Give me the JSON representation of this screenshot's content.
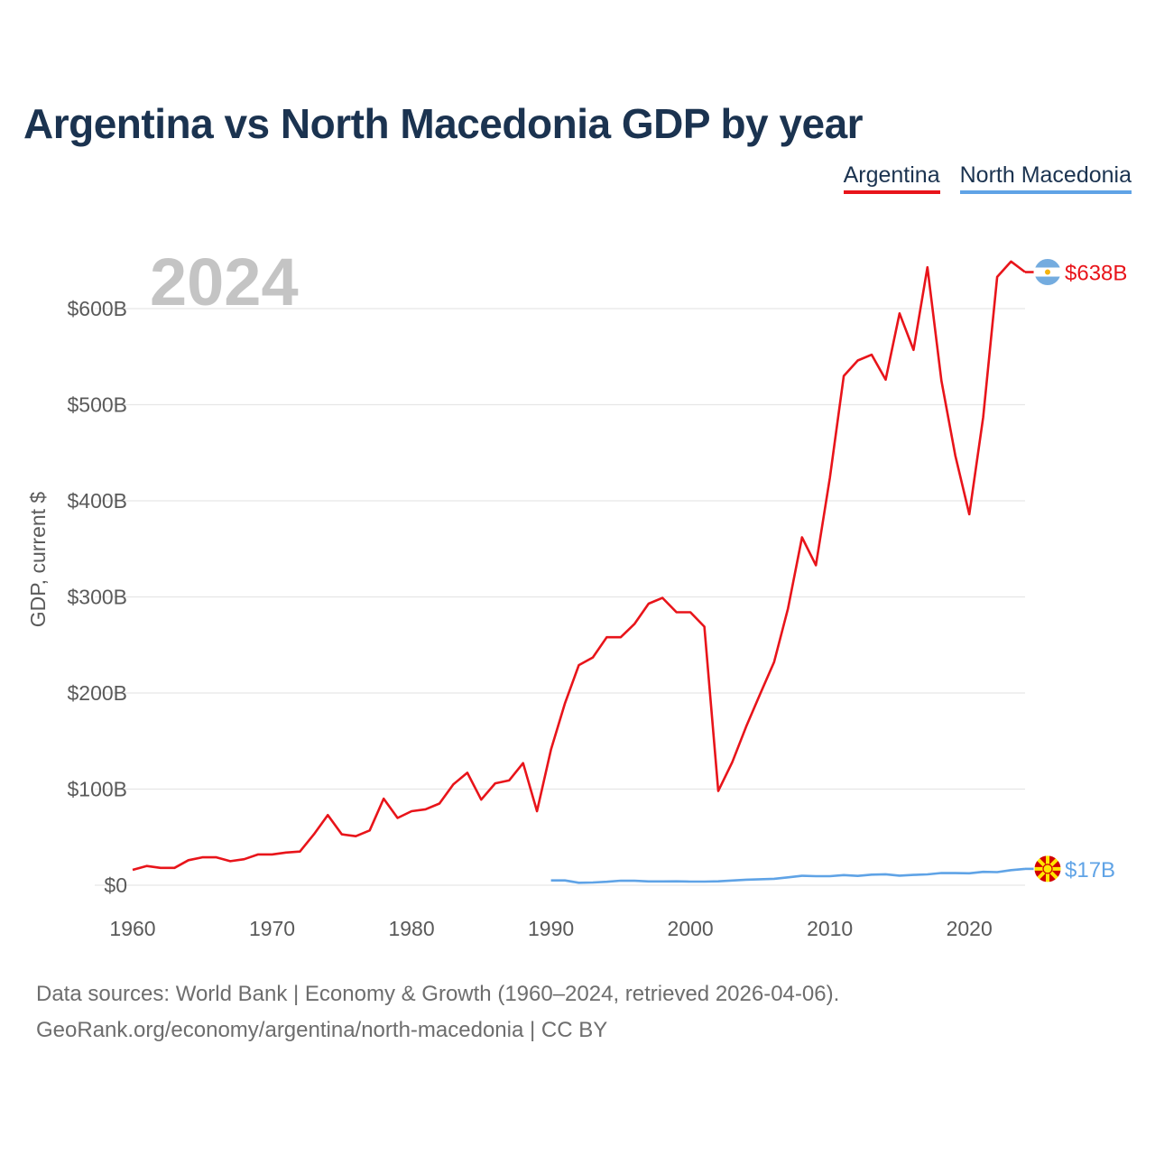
{
  "chart_data": {
    "type": "line",
    "title": "Argentina vs North Macedonia GDP by year",
    "year_label": "2024",
    "ylabel": "GDP, current $",
    "xlabel": "",
    "xlim": [
      1960,
      2024
    ],
    "ylim": [
      0,
      600
    ],
    "y_unit": "billions USD",
    "x_ticks": [
      1960,
      1970,
      1980,
      1990,
      2000,
      2010,
      2020
    ],
    "x_tick_labels": [
      "1960",
      "1970",
      "1980",
      "1990",
      "2000",
      "2010",
      "2020"
    ],
    "y_ticks": [
      0,
      100,
      200,
      300,
      400,
      500,
      600
    ],
    "y_tick_labels": [
      "$0",
      "$100B",
      "$200B",
      "$300B",
      "$400B",
      "$500B",
      "$600B"
    ],
    "grid": true,
    "legend_position": "top-right",
    "series": [
      {
        "name": "Argentina",
        "color": "#e8141a",
        "end_label": "$638B",
        "flag_icon": "argentina-flag-icon",
        "x": [
          1960,
          1961,
          1962,
          1963,
          1964,
          1965,
          1966,
          1967,
          1968,
          1969,
          1970,
          1971,
          1972,
          1973,
          1974,
          1975,
          1976,
          1977,
          1978,
          1979,
          1980,
          1981,
          1982,
          1983,
          1984,
          1985,
          1986,
          1987,
          1988,
          1989,
          1990,
          1991,
          1992,
          1993,
          1994,
          1995,
          1996,
          1997,
          1998,
          1999,
          2000,
          2001,
          2002,
          2003,
          2004,
          2005,
          2006,
          2007,
          2008,
          2009,
          2010,
          2011,
          2012,
          2013,
          2014,
          2015,
          2016,
          2017,
          2018,
          2019,
          2020,
          2021,
          2022,
          2023,
          2024
        ],
        "values": [
          16,
          20,
          18,
          18,
          26,
          29,
          29,
          25,
          27,
          32,
          32,
          34,
          35,
          53,
          73,
          53,
          51,
          57,
          90,
          70,
          77,
          79,
          85,
          105,
          117,
          89,
          106,
          109,
          127,
          77,
          141,
          189,
          229,
          237,
          258,
          258,
          272,
          293,
          299,
          284,
          284,
          269,
          98,
          128,
          165,
          199,
          232,
          288,
          362,
          333,
          424,
          530,
          546,
          552,
          526,
          595,
          557,
          643,
          525,
          447,
          386,
          487,
          633,
          649,
          638
        ]
      },
      {
        "name": "North Macedonia",
        "color": "#5fa3e6",
        "end_label": "$17B",
        "flag_icon": "north-macedonia-flag-icon",
        "x": [
          1990,
          1991,
          1992,
          1993,
          1994,
          1995,
          1996,
          1997,
          1998,
          1999,
          2000,
          2001,
          2002,
          2003,
          2004,
          2005,
          2006,
          2007,
          2008,
          2009,
          2010,
          2011,
          2012,
          2013,
          2014,
          2015,
          2016,
          2017,
          2018,
          2019,
          2020,
          2021,
          2022,
          2023,
          2024
        ],
        "values": [
          5.0,
          5.0,
          2.5,
          2.8,
          3.6,
          4.7,
          4.6,
          3.9,
          3.9,
          4.0,
          3.8,
          3.8,
          4.0,
          4.9,
          5.7,
          6.2,
          6.7,
          8.2,
          9.8,
          9.4,
          9.4,
          10.5,
          9.7,
          11.0,
          11.4,
          10.0,
          10.7,
          11.3,
          12.7,
          12.6,
          12.4,
          13.9,
          13.6,
          15.7,
          17.0
        ]
      }
    ]
  },
  "source": {
    "line1": "Data sources: World Bank | Economy & Growth (1960–2024, retrieved 2026-04-06).",
    "line2": "GeoRank.org/economy/argentina/north-macedonia | CC BY"
  }
}
